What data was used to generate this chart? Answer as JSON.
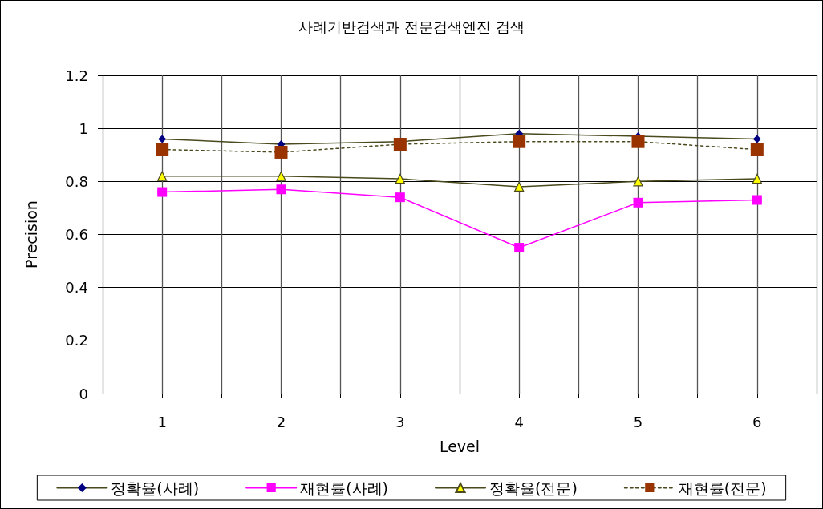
{
  "chart_data": {
    "type": "line",
    "title": "사례기반검색과 전문검색엔진 검색",
    "xlabel": "Level",
    "ylabel": "Precision",
    "categories": [
      "1",
      "2",
      "3",
      "4",
      "5",
      "6"
    ],
    "series": [
      {
        "name": "정확율(사례)",
        "color": "#4a4a1e",
        "colors": [
          "#000080",
          "#000080",
          "#000080",
          "#000080",
          "#000080",
          "#000080"
        ],
        "marker": "diamond",
        "line_style": "solid",
        "values": [
          0.96,
          0.94,
          0.95,
          0.98,
          0.97,
          0.96
        ]
      },
      {
        "name": "재현률(사례)",
        "color": "#ff00ff",
        "marker": "square",
        "line_style": "solid",
        "values": [
          0.76,
          0.77,
          0.74,
          0.55,
          0.72,
          0.73
        ]
      },
      {
        "name": "정확율(전문)",
        "color": "#4a4a1e",
        "colors": [
          "#ffff00",
          "#ffff00",
          "#ffff00",
          "#ffff00",
          "#ffff00",
          "#ffff00"
        ],
        "marker": "triangle",
        "line_style": "solid",
        "values": [
          0.82,
          0.82,
          0.81,
          0.78,
          0.8,
          0.81
        ]
      },
      {
        "name": "재현률(전문)",
        "color": "#4a4a1e",
        "colors": [
          "#993300",
          "#993300",
          "#993300",
          "#993300",
          "#993300",
          "#993300"
        ],
        "marker": "square",
        "line_style": "dotted",
        "values": [
          0.92,
          0.91,
          0.94,
          0.95,
          0.95,
          0.92
        ]
      }
    ],
    "ylim": [
      0,
      1.2
    ],
    "yticks": [
      0,
      0.2,
      0.4,
      0.6,
      0.8,
      1,
      1.2
    ],
    "grid": true,
    "legend": "bottom"
  }
}
